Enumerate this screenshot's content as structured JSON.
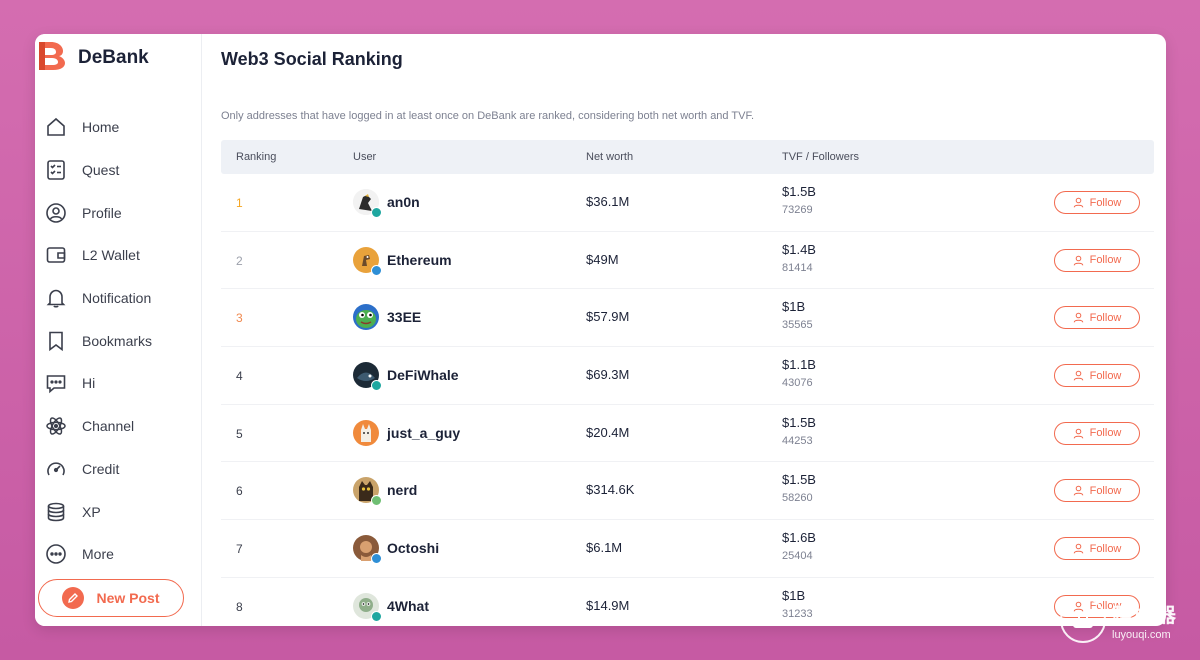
{
  "app": {
    "name": "DeBank",
    "accent_color": "#f26a4f",
    "logo_color": "#f26a4f"
  },
  "sidebar": {
    "items": [
      {
        "label": "Home",
        "icon": "home-icon"
      },
      {
        "label": "Quest",
        "icon": "checklist-icon"
      },
      {
        "label": "Profile",
        "icon": "profile-icon"
      },
      {
        "label": "L2 Wallet",
        "icon": "wallet-icon"
      },
      {
        "label": "Notification",
        "icon": "bell-icon"
      },
      {
        "label": "Bookmarks",
        "icon": "bookmark-icon"
      },
      {
        "label": "Hi",
        "icon": "chat-icon"
      },
      {
        "label": "Channel",
        "icon": "atom-icon"
      },
      {
        "label": "Credit",
        "icon": "gauge-icon"
      },
      {
        "label": "XP",
        "icon": "database-icon"
      },
      {
        "label": "More",
        "icon": "more-icon"
      }
    ],
    "new_post_label": "New Post"
  },
  "main": {
    "title": "Web3 Social Ranking",
    "subtitle": "Only addresses that have logged in at least once on DeBank are ranked, considering both net worth and TVF.",
    "columns": {
      "ranking": "Ranking",
      "user": "User",
      "net_worth": "Net worth",
      "tvf_followers": "TVF / Followers"
    },
    "follow_label": "Follow",
    "rows": [
      {
        "rank": "1",
        "user": "an0n",
        "net_worth": "$36.1M",
        "tvf": "$1.5B",
        "followers": "73269",
        "avatar_color": "#2b2b2b"
      },
      {
        "rank": "2",
        "user": "Ethereum",
        "net_worth": "$49M",
        "tvf": "$1.4B",
        "followers": "81414",
        "avatar_color": "#e9a23b"
      },
      {
        "rank": "3",
        "user": "33EE",
        "net_worth": "$57.9M",
        "tvf": "$1B",
        "followers": "35565",
        "avatar_color": "#4caf50"
      },
      {
        "rank": "4",
        "user": "DeFiWhale",
        "net_worth": "$69.3M",
        "tvf": "$1.1B",
        "followers": "43076",
        "avatar_color": "#3a4a5a"
      },
      {
        "rank": "5",
        "user": "just_a_guy",
        "net_worth": "$20.4M",
        "tvf": "$1.5B",
        "followers": "44253",
        "avatar_color": "#f08a3c"
      },
      {
        "rank": "6",
        "user": "nerd",
        "net_worth": "$314.6K",
        "tvf": "$1.5B",
        "followers": "58260",
        "avatar_color": "#6b4a2a"
      },
      {
        "rank": "7",
        "user": "Octoshi",
        "net_worth": "$6.1M",
        "tvf": "$1.6B",
        "followers": "25404",
        "avatar_color": "#8a5a3a"
      },
      {
        "rank": "8",
        "user": "4What",
        "net_worth": "$14.9M",
        "tvf": "$1B",
        "followers": "31233",
        "avatar_color": "#8fae8a"
      }
    ]
  },
  "watermark": {
    "text_cn": "路由器",
    "text_en": "luyouqi.com"
  }
}
